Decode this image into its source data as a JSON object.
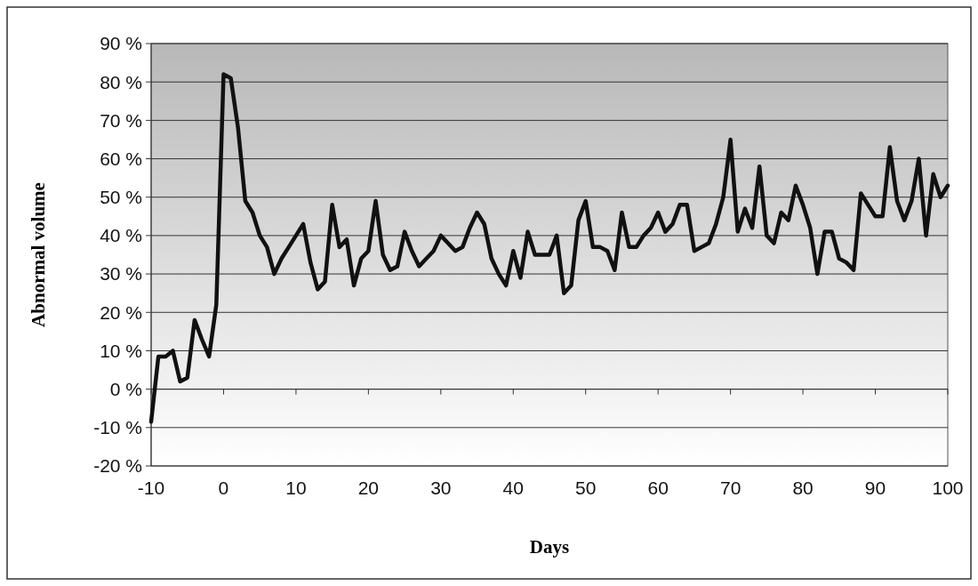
{
  "chart_data": {
    "type": "line",
    "xlabel": "Days",
    "ylabel": "Abnormal volume",
    "x": [
      -10,
      -9,
      -8,
      -7,
      -6,
      -5,
      -4,
      -3,
      -2,
      -1,
      0,
      1,
      2,
      3,
      4,
      5,
      6,
      7,
      8,
      9,
      10,
      11,
      12,
      13,
      14,
      15,
      16,
      17,
      18,
      19,
      20,
      21,
      22,
      23,
      24,
      25,
      26,
      27,
      28,
      29,
      30,
      31,
      32,
      33,
      34,
      35,
      36,
      37,
      38,
      39,
      40,
      41,
      42,
      43,
      44,
      45,
      46,
      47,
      48,
      49,
      50,
      51,
      52,
      53,
      54,
      55,
      56,
      57,
      58,
      59,
      60,
      61,
      62,
      63,
      64,
      65,
      66,
      67,
      68,
      69,
      70,
      71,
      72,
      73,
      74,
      75,
      76,
      77,
      78,
      79,
      80,
      81,
      82,
      83,
      84,
      85,
      86,
      87,
      88,
      89,
      90,
      91,
      92,
      93,
      94,
      95,
      96,
      97,
      98,
      99,
      100
    ],
    "series": [
      {
        "color": "#111111",
        "values": [
          -8.5,
          8.5,
          8.5,
          10,
          2,
          3,
          18,
          13,
          8.5,
          22,
          82,
          81,
          68,
          49,
          46,
          40,
          37,
          30,
          34,
          37,
          40,
          43,
          33,
          26,
          28,
          48,
          37,
          39,
          27,
          34,
          36,
          49,
          35,
          31,
          32,
          41,
          36,
          32,
          34,
          36,
          40,
          38,
          36,
          37,
          42,
          46,
          43,
          34,
          30,
          27,
          36,
          29,
          41,
          35,
          35,
          35,
          40,
          25,
          27,
          44,
          49,
          37,
          37,
          36,
          31,
          46,
          37,
          37,
          40,
          42,
          46,
          41,
          43,
          48,
          48,
          36,
          37,
          38,
          43,
          50,
          65,
          41,
          47,
          42,
          58,
          40,
          38,
          46,
          44,
          53,
          48,
          42,
          30,
          41,
          41,
          34,
          33,
          31,
          51,
          48,
          45,
          45,
          63,
          49,
          44,
          49,
          60,
          40,
          56,
          50,
          53
        ]
      }
    ],
    "xlim": [
      -10,
      100
    ],
    "xticks": [
      -10,
      0,
      10,
      20,
      30,
      40,
      50,
      60,
      70,
      80,
      90,
      100
    ],
    "ylim": [
      -20,
      90
    ],
    "yticks": [
      {
        "value": -20,
        "label": "-20 %"
      },
      {
        "value": -10,
        "label": "-10 %"
      },
      {
        "value": 0,
        "label": "0 %"
      },
      {
        "value": 10,
        "label": "10 %"
      },
      {
        "value": 20,
        "label": "20 %"
      },
      {
        "value": 30,
        "label": "30 %"
      },
      {
        "value": 40,
        "label": "40 %"
      },
      {
        "value": 50,
        "label": "50 %"
      },
      {
        "value": 60,
        "label": "60 %"
      },
      {
        "value": 70,
        "label": "70 %"
      },
      {
        "value": 80,
        "label": "80 %"
      },
      {
        "value": 90,
        "label": "90 %"
      }
    ],
    "grid": "y",
    "marker": "none",
    "line_style": "solid"
  }
}
